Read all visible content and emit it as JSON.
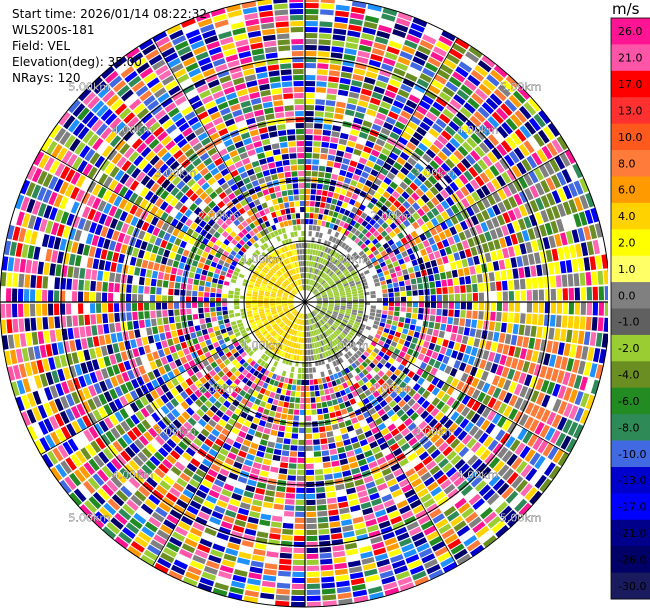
{
  "header": {
    "start_time": "Start time: 2026/01/14 08:22:32",
    "instrument": "WLS200s-181",
    "field": "Field: VEL",
    "elevation": "Elevation(deg): 35.00",
    "nrays": "NRays: 120"
  },
  "colorbar": {
    "unit": "m/s",
    "ticks": [
      "26.0",
      "21.0",
      "17.0",
      "13.0",
      "10.0",
      "8.0",
      "6.0",
      "4.0",
      "2.0",
      "1.0",
      "0.0",
      "-1.0",
      "-2.0",
      "-4.0",
      "-6.0",
      "-8.0",
      "-10.0",
      "-13.0",
      "-17.0",
      "-21.0",
      "-26.0",
      "-30.0"
    ],
    "colors": [
      "#ff1493",
      "#ff55a8",
      "#ff0000",
      "#ff3030",
      "#ff5a1e",
      "#ff7b3a",
      "#ff9a00",
      "#ffd200",
      "#ffff00",
      "#ffff66",
      "#808080",
      "#606060",
      "#9acd32",
      "#6b8e23",
      "#228b22",
      "#2e8b57",
      "#4169e1",
      "#0000cd",
      "#0000ff",
      "#00008b",
      "#000066",
      "#1a1a5e"
    ]
  },
  "chart_data": {
    "type": "heatmap",
    "projection": "polar PPI",
    "field": "VEL",
    "units": "m/s",
    "n_rays": 120,
    "range_labels": [
      "1.00km",
      "2.00km",
      "3.00km",
      "4.00km",
      "5.00km"
    ],
    "range_rings_km": [
      1,
      2,
      3,
      4,
      5
    ],
    "max_range_km": 5.0,
    "color_scale_m_s": [
      -30,
      -26,
      -21,
      -17,
      -13,
      -10,
      -8,
      -6,
      -4,
      -2,
      -1,
      0,
      1,
      2,
      4,
      6,
      8,
      10,
      13,
      17,
      21,
      26
    ]
  }
}
